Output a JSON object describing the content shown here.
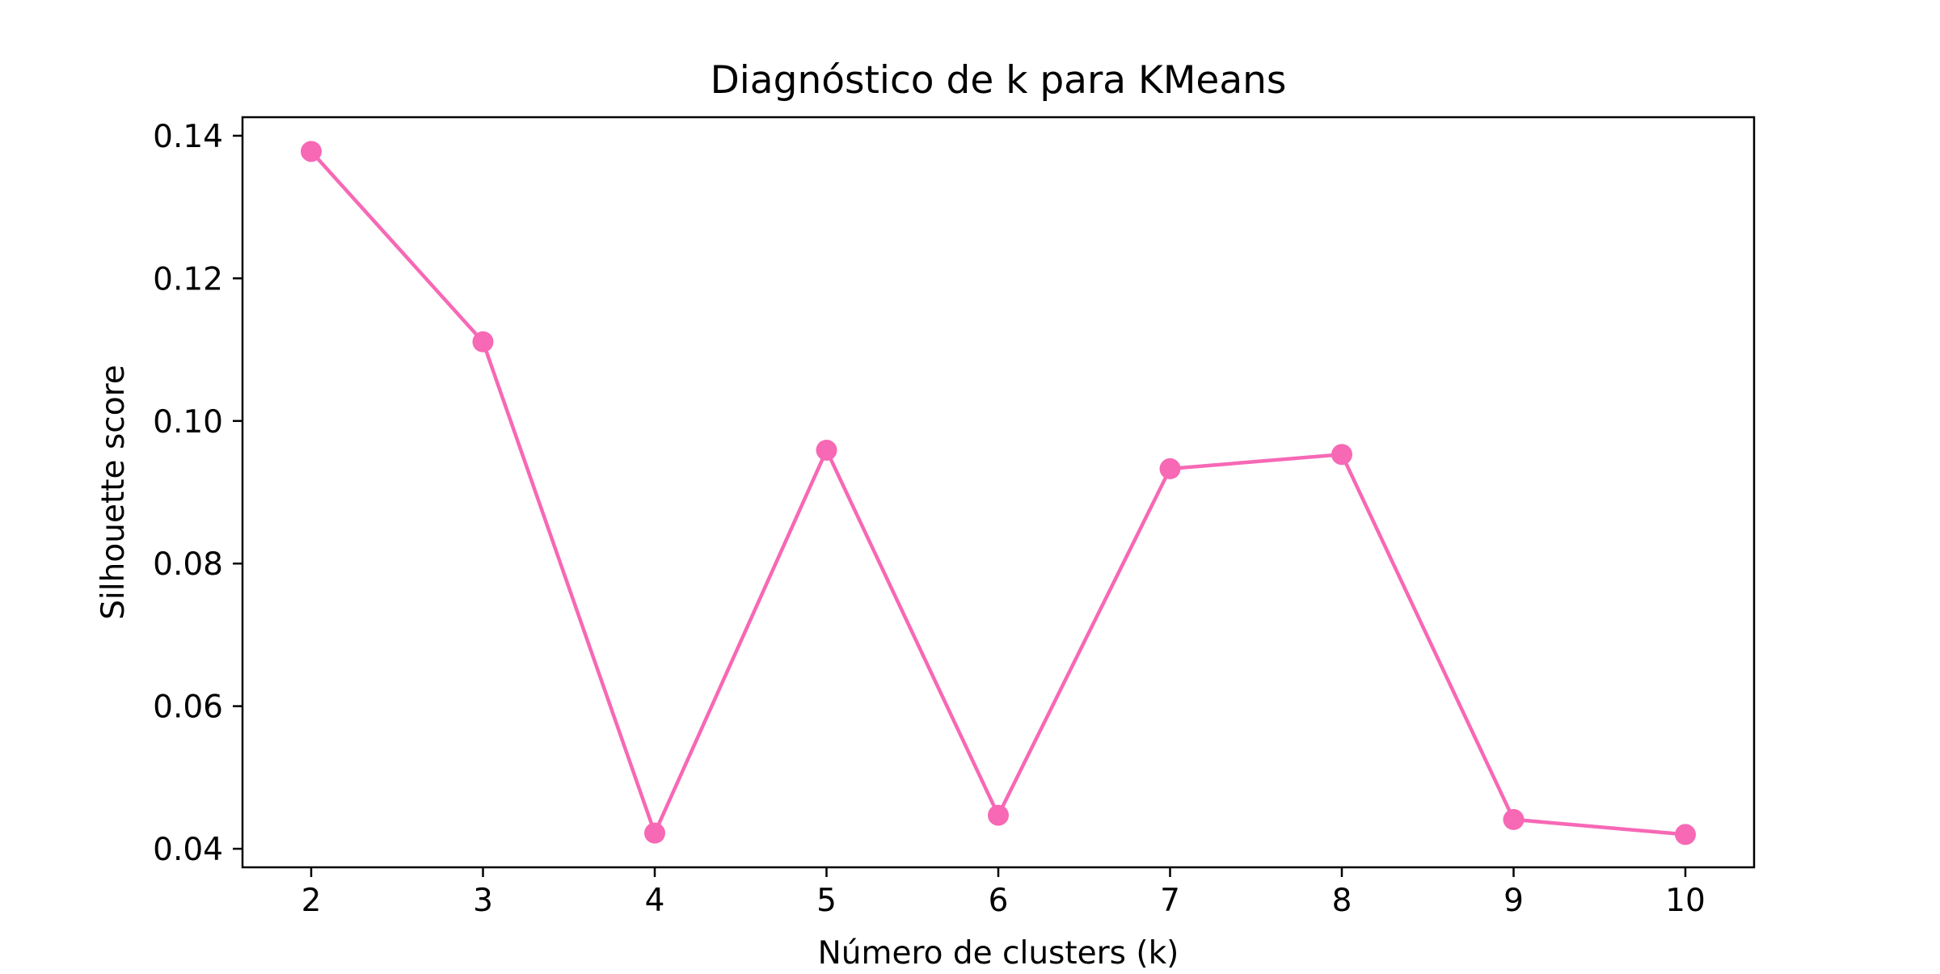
{
  "chart_data": {
    "type": "line",
    "title": "Diagnóstico de k para KMeans",
    "xlabel": "Número de clusters (k)",
    "ylabel": "Silhouette score",
    "x": [
      2,
      3,
      4,
      5,
      6,
      7,
      8,
      9,
      10
    ],
    "series": [
      {
        "values": [
          0.1378,
          0.1111,
          0.0422,
          0.0959,
          0.0447,
          0.0933,
          0.0953,
          0.0441,
          0.042
        ],
        "color": "#f768b5",
        "marker": "circle"
      }
    ],
    "xlim": [
      1.6,
      10.4
    ],
    "ylim": [
      0.0374,
      0.1426
    ],
    "xticks": [
      "2",
      "3",
      "4",
      "5",
      "6",
      "7",
      "8",
      "9",
      "10"
    ],
    "yticks": [
      "0.04",
      "0.06",
      "0.08",
      "0.10",
      "0.12",
      "0.14"
    ],
    "grid": false,
    "legend": "none"
  }
}
